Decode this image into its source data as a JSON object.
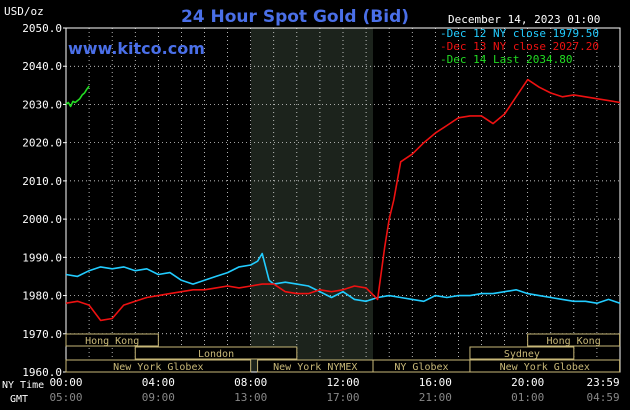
{
  "chart_data": {
    "type": "line",
    "title": "24 Hour Spot Gold (Bid)",
    "ylabel": "USD/oz",
    "date_label": "December 14, 2023 01:00",
    "watermark": "www.kitco.com",
    "ylim": [
      1960,
      2050
    ],
    "y_ticks": [
      "2050.0",
      "2040.0",
      "2030.0",
      "2020.0",
      "2010.0",
      "2000.0",
      "1990.0",
      "1980.0",
      "1970.0",
      "1960.0"
    ],
    "y_tick_values": [
      2050,
      2040,
      2030,
      2020,
      2010,
      2000,
      1990,
      1980,
      1970,
      1960
    ],
    "x_range_hours": [
      0,
      24
    ],
    "row_labels": {
      "ny": "NY Time",
      "gmt": "GMT"
    },
    "x_ticks_ny": [
      "00:00",
      "04:00",
      "08:00",
      "12:00",
      "16:00",
      "20:00",
      "23:59"
    ],
    "x_ticks_gmt": [
      "05:00",
      "09:00",
      "13:00",
      "17:00",
      "21:00",
      "01:00",
      "04:59"
    ],
    "x_tick_hours": [
      0,
      4,
      8,
      12,
      16,
      20,
      23.983
    ],
    "series": [
      {
        "name": "Dec 12 NY close 1979.50",
        "color": "#22ccff",
        "x": [
          0,
          0.5,
          1,
          1.5,
          2,
          2.5,
          3,
          3.5,
          4,
          4.5,
          5,
          5.5,
          6,
          6.5,
          7,
          7.5,
          8,
          8.3,
          8.5,
          8.8,
          9,
          9.5,
          10,
          10.5,
          11,
          11.5,
          12,
          12.5,
          13,
          13.5,
          14,
          14.5,
          15,
          15.5,
          16,
          16.5,
          17,
          17.5,
          18,
          18.5,
          19,
          19.5,
          20,
          20.5,
          21,
          21.5,
          22,
          22.5,
          23,
          23.5,
          24
        ],
        "y": [
          1985.5,
          1985,
          1986.5,
          1987.5,
          1987,
          1987.5,
          1986.5,
          1987,
          1985.5,
          1986,
          1984,
          1983,
          1984,
          1985,
          1986,
          1987.5,
          1988,
          1989,
          1991,
          1984,
          1983,
          1983.5,
          1983,
          1982.5,
          1981,
          1979.5,
          1981,
          1979,
          1978.5,
          1979.5,
          1980,
          1979.5,
          1979,
          1978.5,
          1980,
          1979.5,
          1980,
          1980,
          1980.5,
          1980.5,
          1981,
          1981.5,
          1980.5,
          1980,
          1979.5,
          1979,
          1978.5,
          1978.5,
          1978,
          1979,
          1978
        ]
      },
      {
        "name": "Dec 13 NY close 2027.20",
        "color": "#ee1111",
        "x": [
          0,
          0.5,
          1,
          1.5,
          2,
          2.5,
          3,
          3.5,
          4,
          4.5,
          5,
          5.5,
          6,
          6.5,
          7,
          7.5,
          8,
          8.5,
          9,
          9.5,
          10,
          10.5,
          11,
          11.5,
          12,
          12.5,
          13,
          13.5,
          13.8,
          14,
          14.2,
          14.5,
          15,
          15.5,
          16,
          16.5,
          17,
          17.5,
          18,
          18.5,
          19,
          19.5,
          20,
          20.5,
          21,
          21.5,
          22,
          22.5,
          23,
          23.5,
          24
        ],
        "y": [
          1978,
          1978.5,
          1977.5,
          1973.5,
          1974,
          1977.5,
          1978.5,
          1979.5,
          1980,
          1980.5,
          1981,
          1981.5,
          1981.5,
          1982,
          1982.5,
          1982,
          1982.5,
          1983,
          1983,
          1981,
          1980.5,
          1980.5,
          1981.5,
          1981,
          1981.5,
          1982.5,
          1982,
          1979,
          1992.5,
          2000,
          2005,
          2015,
          2017,
          2020,
          2022.5,
          2024.5,
          2026.5,
          2027,
          2027,
          2025,
          2027.5,
          2032,
          2036.5,
          2034.5,
          2033,
          2032,
          2032.5,
          2032,
          2031.5,
          2031,
          2030.5
        ]
      },
      {
        "name": "Dec 14 Last 2034.80",
        "color": "#22dd22",
        "x": [
          0,
          0.1,
          0.2,
          0.3,
          0.4,
          0.5,
          0.6,
          0.7,
          0.8,
          0.9,
          1.0
        ],
        "y": [
          2030,
          2030.5,
          2029.5,
          2030.8,
          2030.5,
          2031,
          2031.5,
          2032.5,
          2033,
          2034,
          2034.8
        ]
      }
    ],
    "sessions_row1": [
      {
        "label": "Hong Kong",
        "start": 0,
        "end": 4
      },
      {
        "label": "Hong Kong",
        "start": 20,
        "end": 23.983
      }
    ],
    "sessions_row2": [
      {
        "label": "London",
        "start": 3,
        "end": 10
      },
      {
        "label": "Sydney",
        "start": 17.5,
        "end": 22
      }
    ],
    "sessions_row3": [
      {
        "label": "New York Globex",
        "start": 0,
        "end": 8
      },
      {
        "label": "New York NYMEX",
        "start": 8.3,
        "end": 13.3
      },
      {
        "label": "NY Globex",
        "start": 13.3,
        "end": 17.5
      },
      {
        "label": "New York Globex",
        "start": 17.5,
        "end": 23.983
      }
    ],
    "shaded_hours": [
      8,
      13.3
    ],
    "colors": {
      "title": "#4a6fe8",
      "grid": "#ffffff",
      "axis": "#ffffff",
      "session_box": "#c8b878",
      "shade": "#1c231c"
    }
  }
}
